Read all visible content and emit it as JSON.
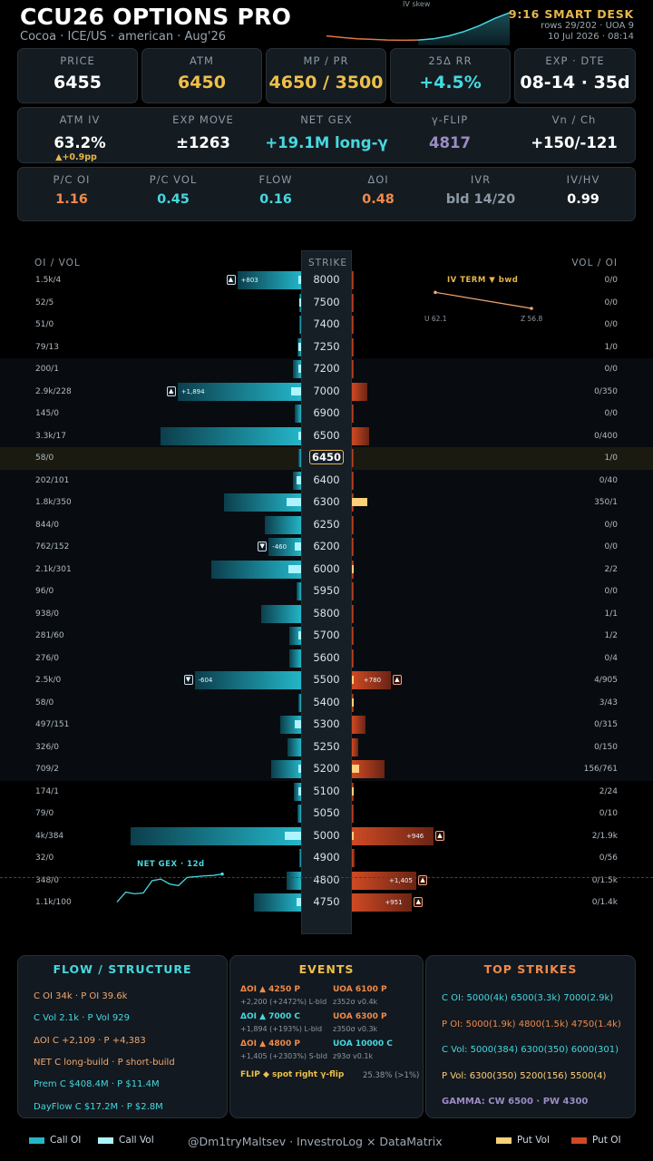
{
  "header": {
    "title": "CCU26 OPTIONS PRO",
    "subtitle": "Cocoa · ICE/US · american · Aug'26",
    "skew_label": "IV skew",
    "time_label": "9:16 SMART DESK",
    "rows_info": "rows 29/202 · UOA 9",
    "date_info": "10 Jul 2026 · 08:14"
  },
  "stats_row1": [
    {
      "label": "PRICE",
      "value": "6455",
      "color": "#ffffff"
    },
    {
      "label": "ATM",
      "value": "6450",
      "color": "#eec04a"
    },
    {
      "label": "MP / PR",
      "value": "4650 / 3500",
      "color": "#eec04a"
    },
    {
      "label": "25Δ RR",
      "value": "+4.5%",
      "color": "#46d8e0"
    },
    {
      "label": "EXP · DTE",
      "value": "08-14 · 35d",
      "color": "#ffffff"
    }
  ],
  "stats_row2": [
    {
      "label": "ATM IV",
      "value": "63.2%",
      "sub": "▲+0.9pp",
      "color": "#ffffff"
    },
    {
      "label": "EXP MOVE",
      "value": "±1263",
      "color": "#ffffff"
    },
    {
      "label": "NET GEX",
      "value": "+19.1M long-γ",
      "color": "#46d8e0"
    },
    {
      "label": "γ-FLIP",
      "value": "4817",
      "color": "#9b8cc4"
    },
    {
      "label": "Vn / Ch",
      "value": "+150/-121",
      "color": "#ffffff"
    }
  ],
  "stats_row3": [
    {
      "label": "P/C OI",
      "value": "1.16",
      "color": "#f08a4a"
    },
    {
      "label": "P/C VOL",
      "value": "0.45",
      "color": "#46d8e0"
    },
    {
      "label": "FLOW",
      "value": "0.16",
      "color": "#46d8e0"
    },
    {
      "label": "ΔOI",
      "value": "0.48",
      "color": "#f08a4a"
    },
    {
      "label": "IVR",
      "value": "bld 14/20",
      "color": "#8d99a4"
    },
    {
      "label": "IV/HV",
      "value": "0.99",
      "color": "#ffffff"
    }
  ],
  "ladder": {
    "left_header": "OI / VOL",
    "strike_header": "STRIKE",
    "right_header": "VOL / OI",
    "rows": [
      {
        "left": "1.5k/4",
        "strike": "8000",
        "right": "0/0",
        "call_oi": 1500,
        "call_vol": 4,
        "put_oi": 0,
        "put_vol": 0,
        "call_delta": "+803",
        "call_dir": "up"
      },
      {
        "left": "52/5",
        "strike": "7500",
        "right": "0/0",
        "call_oi": 52,
        "call_vol": 5,
        "put_oi": 0,
        "put_vol": 0
      },
      {
        "left": "51/0",
        "strike": "7400",
        "right": "0/0",
        "call_oi": 51,
        "call_vol": 0,
        "put_oi": 0,
        "put_vol": 0
      },
      {
        "left": "79/13",
        "strike": "7250",
        "right": "1/0",
        "call_oi": 79,
        "call_vol": 13,
        "put_oi": 0,
        "put_vol": 1
      },
      {
        "left": "200/1",
        "strike": "7200",
        "right": "0/0",
        "call_oi": 200,
        "call_vol": 1,
        "put_oi": 0,
        "put_vol": 0
      },
      {
        "left": "2.9k/228",
        "strike": "7000",
        "right": "0/350",
        "call_oi": 2900,
        "call_vol": 228,
        "put_oi": 350,
        "put_vol": 0,
        "call_delta": "+1,894",
        "call_dir": "up"
      },
      {
        "left": "145/0",
        "strike": "6900",
        "right": "0/0",
        "call_oi": 145,
        "call_vol": 0,
        "put_oi": 0,
        "put_vol": 0
      },
      {
        "left": "3.3k/17",
        "strike": "6500",
        "right": "0/400",
        "call_oi": 3300,
        "call_vol": 17,
        "put_oi": 400,
        "put_vol": 0
      },
      {
        "left": "58/0",
        "strike": "6450",
        "right": "1/0",
        "call_oi": 58,
        "call_vol": 0,
        "put_oi": 0,
        "put_vol": 1,
        "atm": true
      },
      {
        "left": "202/101",
        "strike": "6400",
        "right": "0/40",
        "call_oi": 202,
        "call_vol": 101,
        "put_oi": 40,
        "put_vol": 0
      },
      {
        "left": "1.8k/350",
        "strike": "6300",
        "right": "350/1",
        "call_oi": 1800,
        "call_vol": 350,
        "put_oi": 1,
        "put_vol": 350
      },
      {
        "left": "844/0",
        "strike": "6250",
        "right": "0/0",
        "call_oi": 844,
        "call_vol": 0,
        "put_oi": 0,
        "put_vol": 0
      },
      {
        "left": "762/152",
        "strike": "6200",
        "right": "0/0",
        "call_oi": 762,
        "call_vol": 152,
        "put_oi": 0,
        "put_vol": 0,
        "call_delta": "-460",
        "call_dir": "down"
      },
      {
        "left": "2.1k/301",
        "strike": "6000",
        "right": "2/2",
        "call_oi": 2100,
        "call_vol": 301,
        "put_oi": 2,
        "put_vol": 2
      },
      {
        "left": "96/0",
        "strike": "5950",
        "right": "0/0",
        "call_oi": 96,
        "call_vol": 0,
        "put_oi": 0,
        "put_vol": 0
      },
      {
        "left": "938/0",
        "strike": "5800",
        "right": "1/1",
        "call_oi": 938,
        "call_vol": 0,
        "put_oi": 1,
        "put_vol": 1
      },
      {
        "left": "281/60",
        "strike": "5700",
        "right": "1/2",
        "call_oi": 281,
        "call_vol": 60,
        "put_oi": 2,
        "put_vol": 1
      },
      {
        "left": "276/0",
        "strike": "5600",
        "right": "0/4",
        "call_oi": 276,
        "call_vol": 0,
        "put_oi": 4,
        "put_vol": 0
      },
      {
        "left": "2.5k/0",
        "strike": "5500",
        "right": "4/905",
        "call_oi": 2500,
        "call_vol": 0,
        "put_oi": 905,
        "put_vol": 4,
        "call_delta": "-604",
        "call_dir": "down",
        "put_delta": "+780",
        "put_dir": "up"
      },
      {
        "left": "58/0",
        "strike": "5400",
        "right": "3/43",
        "call_oi": 58,
        "call_vol": 0,
        "put_oi": 43,
        "put_vol": 3
      },
      {
        "left": "497/151",
        "strike": "5300",
        "right": "0/315",
        "call_oi": 497,
        "call_vol": 151,
        "put_oi": 315,
        "put_vol": 0
      },
      {
        "left": "326/0",
        "strike": "5250",
        "right": "0/150",
        "call_oi": 326,
        "call_vol": 0,
        "put_oi": 150,
        "put_vol": 0
      },
      {
        "left": "709/2",
        "strike": "5200",
        "right": "156/761",
        "call_oi": 709,
        "call_vol": 2,
        "put_oi": 761,
        "put_vol": 156
      },
      {
        "left": "174/1",
        "strike": "5100",
        "right": "2/24",
        "call_oi": 174,
        "call_vol": 1,
        "put_oi": 24,
        "put_vol": 2
      },
      {
        "left": "79/0",
        "strike": "5050",
        "right": "0/10",
        "call_oi": 79,
        "call_vol": 0,
        "put_oi": 10,
        "put_vol": 0
      },
      {
        "left": "4k/384",
        "strike": "5000",
        "right": "2/1.9k",
        "call_oi": 4000,
        "call_vol": 384,
        "put_oi": 1900,
        "put_vol": 2,
        "put_delta": "+946",
        "put_dir": "up"
      },
      {
        "left": "32/0",
        "strike": "4900",
        "right": "0/56",
        "call_oi": 32,
        "call_vol": 0,
        "put_oi": 56,
        "put_vol": 0
      },
      {
        "left": "348/0",
        "strike": "4800",
        "right": "0/1.5k",
        "call_oi": 348,
        "call_vol": 0,
        "put_oi": 1500,
        "put_vol": 0,
        "put_delta": "+1,405",
        "put_dir": "up"
      },
      {
        "left": "1.1k/100",
        "strike": "4750",
        "right": "0/1.4k",
        "call_oi": 1100,
        "call_vol": 100,
        "put_oi": 1400,
        "put_vol": 0,
        "put_delta": "+951",
        "put_dir": "up"
      }
    ]
  },
  "iv_term": {
    "title": "IV TERM  ▼ bwd",
    "u_label": "U 62.1",
    "z_label": "Z 56.8",
    "values": [
      62.1,
      56.8
    ]
  },
  "net_gex_chart": {
    "title": "NET GEX · 12d",
    "values": [
      2,
      8,
      7,
      7.5,
      15,
      16,
      13,
      12,
      17,
      17.5,
      18,
      18.2,
      19.1
    ]
  },
  "skew_curve": {
    "values": [
      0.2,
      0.15,
      0.1,
      0.08,
      0.06,
      0.05,
      0.06,
      0.1,
      0.2,
      0.35,
      0.55,
      0.8,
      1.0
    ]
  },
  "flow_panel": {
    "title": "FLOW / STRUCTURE",
    "lines": [
      {
        "text": "C OI 34k  ·  P OI 39.6k",
        "color": "#f0a870"
      },
      {
        "text": "C Vol 2.1k  ·  P Vol 929",
        "color": "#46d8e0"
      },
      {
        "text": "ΔOI C +2,109  ·  P +4,383",
        "color": "#f0a870"
      },
      {
        "text": "NET  C long-build  ·  P short-build",
        "color": "#f0a870"
      },
      {
        "text": "Prem  C $408.4M  ·  P $11.4M",
        "color": "#46d8e0"
      },
      {
        "text": "DayFlow  C $17.2M  ·  P $2.8M",
        "color": "#46d8e0"
      }
    ]
  },
  "events_panel": {
    "title": "EVENTS",
    "items": [
      {
        "head": "ΔOI ▲ 4250 P",
        "head_color": "#f08a4a",
        "sub": "+2,200 (+2472%)  L-bld",
        "uoa": "UOA 6100 P",
        "uoa_color": "#f08a4a",
        "uoa_sub": "z352σ v0.4k"
      },
      {
        "head": "ΔOI ▲ 7000 C",
        "head_color": "#46d8e0",
        "sub": "+1,894 (+193%)  L-bld",
        "uoa": "UOA 6300 P",
        "uoa_color": "#f08a4a",
        "uoa_sub": "z350σ v0.3k"
      },
      {
        "head": "ΔOI ▲ 4800 P",
        "head_color": "#f08a4a",
        "sub": "+1,405 (+2303%)  S-bld",
        "uoa": "UOA 10000 C",
        "uoa_color": "#46d8e0",
        "uoa_sub": "z93σ v0.1k"
      }
    ],
    "flip": "FLIP ◆ spot right γ-flip",
    "flip_pct": "25.38% (>1%)"
  },
  "top_strikes_panel": {
    "title": "TOP STRIKES",
    "lines": [
      {
        "text": "C OI: 5000(4k)  6500(3.3k)  7000(2.9k)",
        "color": "#46d8e0"
      },
      {
        "text": "P OI: 5000(1.9k)  4800(1.5k)  4750(1.4k)",
        "color": "#f08a4a"
      },
      {
        "text": "C Vol: 5000(384)  6300(350)  6000(301)",
        "color": "#46d8e0"
      },
      {
        "text": "P Vol: 6300(350)  5200(156)  5500(4)",
        "color": "#ffd07a"
      },
      {
        "text": "GAMMA: CW 6500 · PW 4300",
        "color": "#9b8cc4"
      }
    ]
  },
  "legend": {
    "call_oi": "Call OI",
    "call_vol": "Call Vol",
    "credit": "@Dm1tryMaltsev  ·  InvestroLog × DataMatrix",
    "put_vol": "Put Vol",
    "put_oi": "Put OI",
    "colors": {
      "call_oi": "#23b6c8",
      "call_vol": "#aef4ff",
      "put_vol": "#ffd07a",
      "put_oi": "#cf4a24"
    }
  }
}
